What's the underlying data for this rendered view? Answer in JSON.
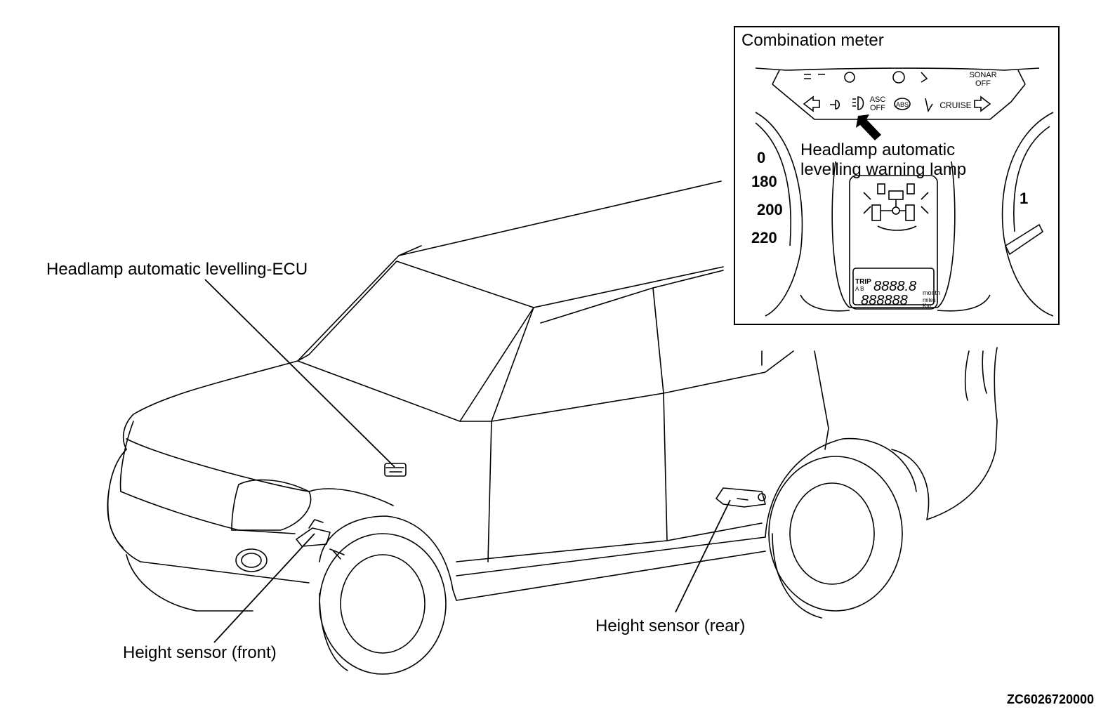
{
  "callouts": {
    "ecu": "Headlamp automatic levelling-ECU",
    "sensor_front": "Height sensor (front)",
    "sensor_rear": "Height sensor (rear)",
    "warning_lamp_line1": "Headlamp automatic",
    "warning_lamp_line2": "levelling warning lamp"
  },
  "inset": {
    "title": "Combination meter",
    "indicators": {
      "sonar_line1": "SONAR",
      "sonar_line2": "OFF",
      "asc_line1": "ASC",
      "asc_line2": "OFF",
      "abs": "ABS",
      "cruise": "CRUISE"
    },
    "speedometer_ticks": [
      "0",
      "180",
      "200",
      "220"
    ],
    "right_gauge_digit": "1",
    "display": {
      "trip_label": "TRIP",
      "trip_sub": "A B",
      "trip_digits": "8888.8",
      "month_label": "month",
      "odo_digits": "888888",
      "miles_label": "miles",
      "km_label": "Km"
    }
  },
  "document_code": "ZC6026720000"
}
